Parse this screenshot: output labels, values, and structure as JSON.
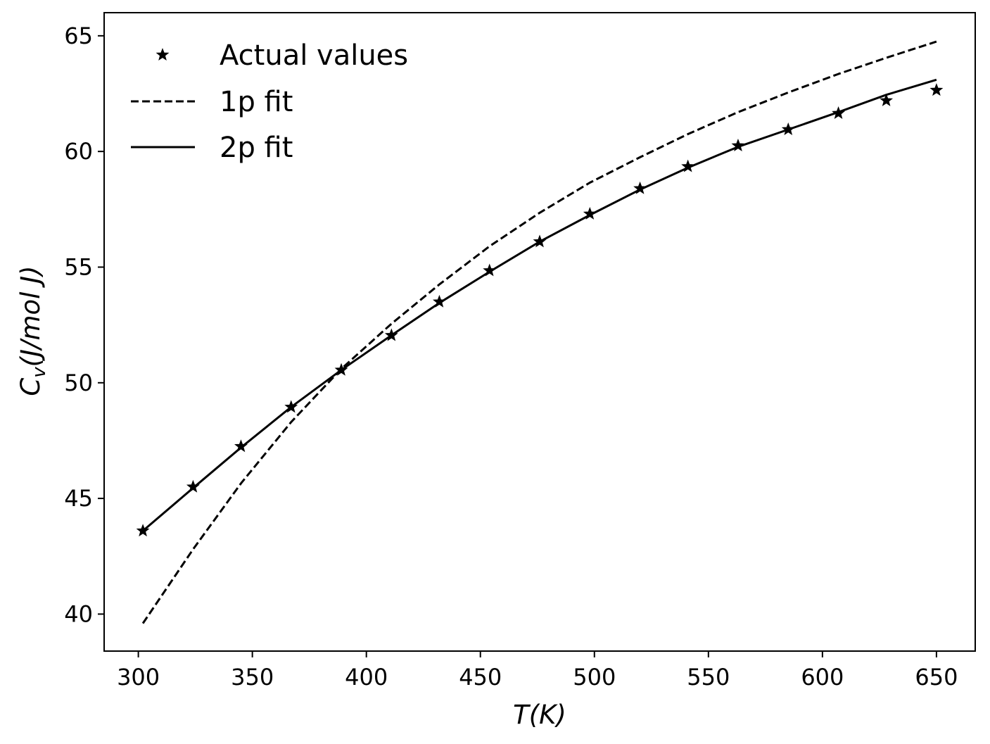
{
  "chart_data": {
    "type": "line",
    "xlabel": "T(K)",
    "ylabel": "Cv(J/mol J)",
    "ylabel_main": "C",
    "ylabel_sub": "v",
    "ylabel_rest": "(J/mol J)",
    "xlim": [
      285,
      667
    ],
    "ylim": [
      38.4,
      66.0
    ],
    "xticks": [
      300,
      350,
      400,
      450,
      500,
      550,
      600,
      650
    ],
    "yticks": [
      40,
      45,
      50,
      55,
      60,
      65
    ],
    "grid": false,
    "legend_position": "upper-left",
    "series": [
      {
        "name": "Actual values",
        "style": "star-markers",
        "color": "#000000",
        "x": [
          302,
          324,
          345,
          367,
          389,
          411,
          432,
          454,
          476,
          498,
          520,
          541,
          563,
          585,
          607,
          628,
          650
        ],
        "y": [
          43.6,
          45.5,
          47.25,
          48.95,
          50.55,
          52.05,
          53.5,
          54.85,
          56.1,
          57.3,
          58.4,
          59.35,
          60.25,
          60.95,
          61.65,
          62.2,
          62.65
        ]
      },
      {
        "name": "1p fit",
        "style": "dashed",
        "color": "#000000",
        "x": [
          302,
          324,
          345,
          367,
          389,
          411,
          432,
          454,
          476,
          498,
          520,
          541,
          563,
          585,
          607,
          628,
          650
        ],
        "y": [
          39.6,
          42.8,
          45.65,
          48.3,
          50.6,
          52.55,
          54.25,
          55.9,
          57.35,
          58.65,
          59.75,
          60.75,
          61.7,
          62.55,
          63.35,
          64.05,
          64.75
        ]
      },
      {
        "name": "2p fit",
        "style": "solid",
        "color": "#000000",
        "x": [
          302,
          324,
          345,
          367,
          389,
          411,
          432,
          454,
          476,
          498,
          520,
          541,
          563,
          585,
          607,
          628,
          650
        ],
        "y": [
          43.6,
          45.45,
          47.2,
          48.95,
          50.55,
          52.05,
          53.45,
          54.8,
          56.1,
          57.25,
          58.35,
          59.3,
          60.2,
          60.95,
          61.7,
          62.45,
          63.1
        ]
      }
    ]
  }
}
